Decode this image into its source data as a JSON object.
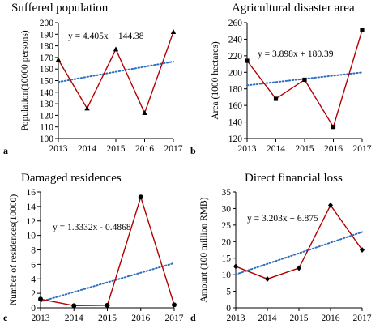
{
  "chart_data": [
    {
      "type": "line",
      "panel_label": "a",
      "title": "Suffered population",
      "xlabel": "",
      "ylabel": "Population(10000 persons)",
      "categories": [
        "2013",
        "2014",
        "2015",
        "2016",
        "2017"
      ],
      "values": [
        168,
        126,
        177,
        122,
        192
      ],
      "marker": "triangle",
      "ylim": [
        100,
        200
      ],
      "yticks": [
        100,
        110,
        120,
        130,
        140,
        150,
        160,
        170,
        180,
        190,
        200
      ],
      "trendline": {
        "slope": 4.405,
        "intercept": 144.38,
        "label": "y = 4.405x + 144.38"
      }
    },
    {
      "type": "line",
      "panel_label": "b",
      "title": "Agricultural disaster area",
      "xlabel": "",
      "ylabel": "Area (1000 hectares)",
      "categories": [
        "2013",
        "2014",
        "2015",
        "2016",
        "2017"
      ],
      "values": [
        214,
        168,
        191,
        134,
        251
      ],
      "marker": "square",
      "ylim": [
        120,
        260
      ],
      "yticks": [
        120,
        140,
        160,
        180,
        200,
        220,
        240,
        260
      ],
      "trendline": {
        "slope": 3.898,
        "intercept": 180.39,
        "label": "y = 3.898x + 180.39"
      }
    },
    {
      "type": "line",
      "panel_label": "c",
      "title": "Damaged residences",
      "xlabel": "",
      "ylabel": "Number of residences(10000)",
      "categories": [
        "2013",
        "2014",
        "2015",
        "2016",
        "2017"
      ],
      "values": [
        1.2,
        0.3,
        0.35,
        15.3,
        0.4
      ],
      "marker": "circle",
      "ylim": [
        0,
        16
      ],
      "yticks": [
        0,
        2,
        4,
        6,
        8,
        10,
        12,
        14,
        16
      ],
      "trendline": {
        "slope": 1.3332,
        "intercept": -0.4868,
        "label": "y = 1.3332x - 0.4868"
      }
    },
    {
      "type": "line",
      "panel_label": "d",
      "title": "Direct financial loss",
      "xlabel": "",
      "ylabel": "Amount (100 million RMB)",
      "categories": [
        "2013",
        "2014",
        "2015",
        "2016",
        "2017"
      ],
      "values": [
        12.5,
        8.7,
        12,
        31,
        17.5
      ],
      "marker": "diamond",
      "ylim": [
        0,
        35
      ],
      "yticks": [
        0,
        5,
        10,
        15,
        20,
        25,
        30,
        35
      ],
      "trendline": {
        "slope": 3.203,
        "intercept": 6.875,
        "label": "y = 3.203x + 6.875"
      }
    }
  ],
  "colors": {
    "series_line": "#b00000",
    "trendline": "#2e6fbe",
    "marker": "#000000",
    "axis": "#000000"
  }
}
